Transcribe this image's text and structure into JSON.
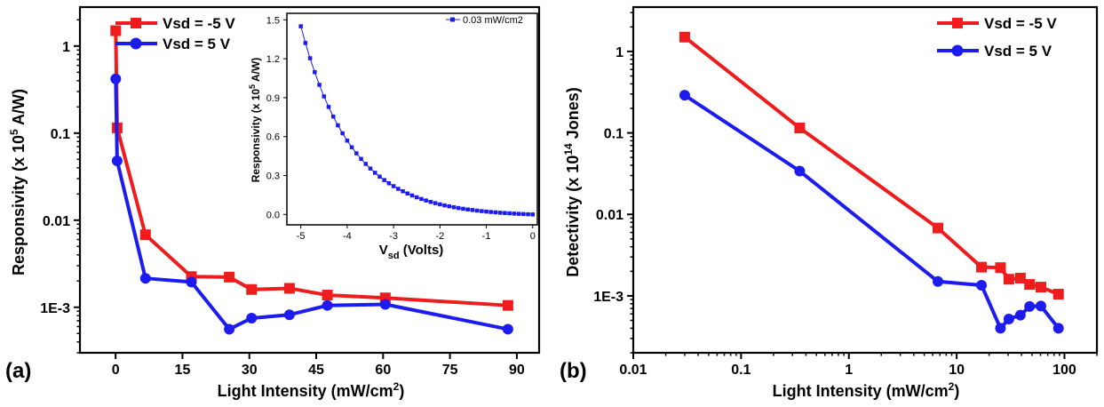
{
  "chart_data": [
    {
      "id": "panel-a",
      "type": "line",
      "panel_label": "(a)",
      "xlabel": "Light Intensity (mW/cm",
      "xlabel_sup": "2",
      "xlabel_end": ")",
      "ylabel_parts": [
        "Responsivity (x 10",
        "5",
        " A/W)"
      ],
      "xlim": [
        -8,
        95
      ],
      "ylim": [
        0.0003,
        2.8
      ],
      "yscale": "log",
      "xticks": [
        0,
        15,
        30,
        45,
        60,
        75,
        90
      ],
      "xtick_labels": [
        "0",
        "15",
        "30",
        "45",
        "60",
        "75",
        "90"
      ],
      "yticks": [
        0.001,
        0.01,
        0.1,
        1
      ],
      "ytick_labels": [
        "1E-3",
        "0.01",
        "0.1",
        "1"
      ],
      "legend_position": "top-left",
      "series": [
        {
          "name": "Vsd = -5 V",
          "color": "#ee1c1c",
          "marker": "square",
          "x": [
            0.03,
            0.35,
            6.7,
            17,
            25.5,
            30.5,
            39,
            47.5,
            60.5,
            88
          ],
          "y": [
            1.5,
            0.115,
            0.0068,
            0.00225,
            0.00222,
            0.0016,
            0.00165,
            0.00138,
            0.00128,
            0.00105
          ]
        },
        {
          "name": "Vsd = 5 V",
          "color": "#1c1cee",
          "marker": "circle",
          "x": [
            0.03,
            0.35,
            6.7,
            17,
            25.5,
            30.5,
            39,
            47.5,
            60.5,
            88
          ],
          "y": [
            0.42,
            0.048,
            0.00215,
            0.00195,
            0.00056,
            0.00075,
            0.00082,
            0.00105,
            0.00108,
            0.00056
          ]
        }
      ]
    },
    {
      "id": "panel-a-inset",
      "type": "line",
      "xlabel_main": "V",
      "xlabel_sub": "sd",
      "xlabel_rest": " (Volts)",
      "ylabel_parts": [
        "Responsivity (x 10",
        "5",
        " A/W)"
      ],
      "xlim": [
        -5.3,
        0.1
      ],
      "ylim": [
        -0.08,
        1.55
      ],
      "xticks": [
        -5,
        -4,
        -3,
        -2,
        -1,
        0
      ],
      "xtick_labels": [
        "-5",
        "-4",
        "-3",
        "-2",
        "-1",
        "0"
      ],
      "yticks": [
        0.0,
        0.3,
        0.6,
        0.9,
        1.2,
        1.5
      ],
      "ytick_labels": [
        "0.0",
        "0.3",
        "0.6",
        "0.9",
        "1.2",
        "1.5"
      ],
      "legend_position": "top-right",
      "series": [
        {
          "name": "0.03 mW/cm2",
          "color": "#1c1cee",
          "marker": "square",
          "x_start": -5.0,
          "x_end": 0.0,
          "x_step": 0.1,
          "model": "exponential decay from 1.45 at -5 V to 0 at 0 V"
        }
      ]
    },
    {
      "id": "panel-b",
      "type": "line",
      "panel_label": "(b)",
      "xlabel": "Light Intensity (mW/cm",
      "xlabel_sup": "2",
      "xlabel_end": ")",
      "ylabel_parts": [
        "Detectivity (x 10",
        "14",
        " Jones)"
      ],
      "xlim": [
        0.01,
        200
      ],
      "ylim": [
        0.0002,
        3.5
      ],
      "xscale": "log",
      "yscale": "log",
      "xticks": [
        0.01,
        0.1,
        1,
        10,
        100
      ],
      "xtick_labels": [
        "0.01",
        "0.1",
        "1",
        "10",
        "100"
      ],
      "yticks": [
        0.001,
        0.01,
        0.1,
        1
      ],
      "ytick_labels": [
        "1E-3",
        "0.01",
        "0.1",
        "1"
      ],
      "legend_position": "top-right",
      "series": [
        {
          "name": "Vsd = -5 V",
          "color": "#ee1c1c",
          "marker": "square",
          "x": [
            0.03,
            0.35,
            6.7,
            17,
            25.5,
            30.5,
            39,
            47.5,
            60.5,
            88
          ],
          "y": [
            1.5,
            0.115,
            0.0068,
            0.00225,
            0.00222,
            0.0016,
            0.00165,
            0.00138,
            0.00128,
            0.00105
          ]
        },
        {
          "name": "Vsd = 5 V",
          "color": "#1c1cee",
          "marker": "circle",
          "x": [
            0.03,
            0.35,
            6.7,
            17,
            25.5,
            30.5,
            39,
            47.5,
            60.5,
            88
          ],
          "y": [
            0.29,
            0.034,
            0.0015,
            0.00135,
            0.0004,
            0.00052,
            0.00058,
            0.00074,
            0.00075,
            0.0004
          ]
        }
      ]
    }
  ]
}
